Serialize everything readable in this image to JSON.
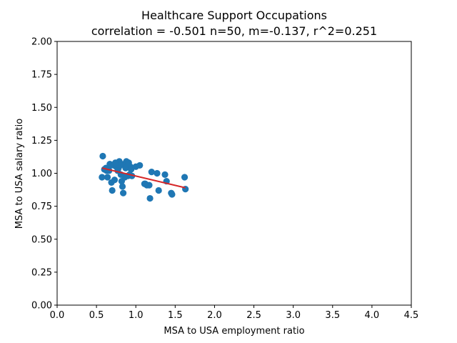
{
  "chart_data": {
    "type": "scatter",
    "title": "Healthcare Support Occupations",
    "subtitle": "correlation = -0.501 n=50, m=-0.137, r^2=0.251",
    "xlabel": "MSA to USA employment ratio",
    "ylabel": "MSA to USA salary ratio",
    "xlim": [
      0.0,
      4.5
    ],
    "ylim": [
      0.0,
      2.0
    ],
    "xticks": [
      "0.0",
      "0.5",
      "1.0",
      "1.5",
      "2.0",
      "2.5",
      "3.0",
      "3.5",
      "4.0",
      "4.5"
    ],
    "yticks": [
      "0.00",
      "0.25",
      "0.50",
      "0.75",
      "1.00",
      "1.25",
      "1.50",
      "1.75",
      "2.00"
    ],
    "grid": false,
    "point_color": "#1f77b4",
    "line_color": "#d62728",
    "points": [
      {
        "x": 0.58,
        "y": 1.13
      },
      {
        "x": 0.57,
        "y": 0.97
      },
      {
        "x": 0.6,
        "y": 1.03
      },
      {
        "x": 0.62,
        "y": 1.04
      },
      {
        "x": 0.64,
        "y": 0.97
      },
      {
        "x": 0.66,
        "y": 1.02
      },
      {
        "x": 0.67,
        "y": 1.07
      },
      {
        "x": 0.69,
        "y": 0.93
      },
      {
        "x": 0.7,
        "y": 0.87
      },
      {
        "x": 0.72,
        "y": 1.06
      },
      {
        "x": 0.73,
        "y": 0.95
      },
      {
        "x": 0.75,
        "y": 1.05
      },
      {
        "x": 0.76,
        "y": 1.07
      },
      {
        "x": 0.78,
        "y": 1.04
      },
      {
        "x": 0.79,
        "y": 1.09
      },
      {
        "x": 0.8,
        "y": 1.06
      },
      {
        "x": 0.81,
        "y": 0.99
      },
      {
        "x": 0.82,
        "y": 0.94
      },
      {
        "x": 0.83,
        "y": 0.9
      },
      {
        "x": 0.84,
        "y": 0.85
      },
      {
        "x": 0.85,
        "y": 1.07
      },
      {
        "x": 0.88,
        "y": 1.09
      },
      {
        "x": 0.9,
        "y": 0.98
      },
      {
        "x": 0.91,
        "y": 1.08
      },
      {
        "x": 0.93,
        "y": 1.05
      },
      {
        "x": 0.94,
        "y": 1.03
      },
      {
        "x": 0.95,
        "y": 0.98
      },
      {
        "x": 1.0,
        "y": 1.05
      },
      {
        "x": 1.05,
        "y": 1.06
      },
      {
        "x": 1.11,
        "y": 0.92
      },
      {
        "x": 1.14,
        "y": 0.91
      },
      {
        "x": 1.17,
        "y": 0.91
      },
      {
        "x": 1.18,
        "y": 0.81
      },
      {
        "x": 1.2,
        "y": 1.01
      },
      {
        "x": 1.27,
        "y": 1.0
      },
      {
        "x": 1.29,
        "y": 0.87
      },
      {
        "x": 1.37,
        "y": 0.99
      },
      {
        "x": 1.39,
        "y": 0.94
      },
      {
        "x": 1.45,
        "y": 0.85
      },
      {
        "x": 1.46,
        "y": 0.84
      },
      {
        "x": 1.62,
        "y": 0.97
      },
      {
        "x": 1.63,
        "y": 0.88
      },
      {
        "x": 0.86,
        "y": 0.97
      },
      {
        "x": 0.77,
        "y": 1.02
      },
      {
        "x": 0.68,
        "y": 1.06
      },
      {
        "x": 0.92,
        "y": 0.99
      },
      {
        "x": 0.74,
        "y": 1.08
      },
      {
        "x": 0.87,
        "y": 1.04
      },
      {
        "x": 1.12,
        "y": 0.92
      },
      {
        "x": 0.63,
        "y": 1.02
      }
    ],
    "trend_line": {
      "x": [
        0.57,
        1.63
      ],
      "y": [
        1.04,
        0.89
      ]
    }
  }
}
